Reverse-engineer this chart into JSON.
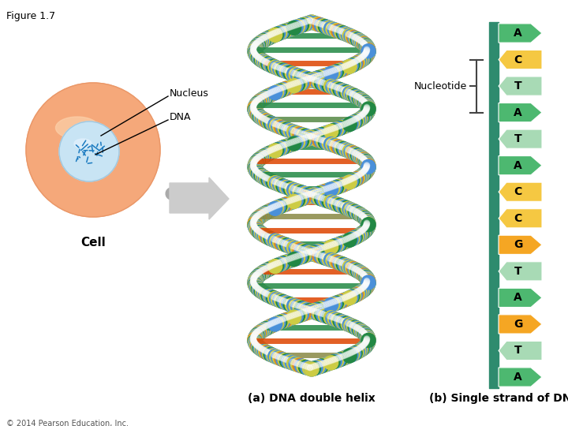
{
  "figure_title": "Figure 1.7",
  "nucleotides": [
    "A",
    "C",
    "T",
    "A",
    "T",
    "A",
    "C",
    "C",
    "G",
    "T",
    "A",
    "G",
    "T",
    "A"
  ],
  "nucleotide_colors": {
    "A": "#4db870",
    "T": "#a8dab5",
    "C": "#f5c842",
    "G": "#f5a623"
  },
  "label_nucleus": "Nucleus",
  "label_dna": "DNA",
  "label_cell": "Cell",
  "label_nucleotide": "Nucleotide",
  "label_a": "(a) DNA double helix",
  "label_b": "(b) Single strand of DNA",
  "cell_color": "#f5a87a",
  "nucleus_color": "#c8e4f4",
  "copyright": "© 2014 Pearson Education, Inc.",
  "bg_color": "#ffffff",
  "strand_bar_color": "#2e8b6e",
  "brace_color": "#444444"
}
